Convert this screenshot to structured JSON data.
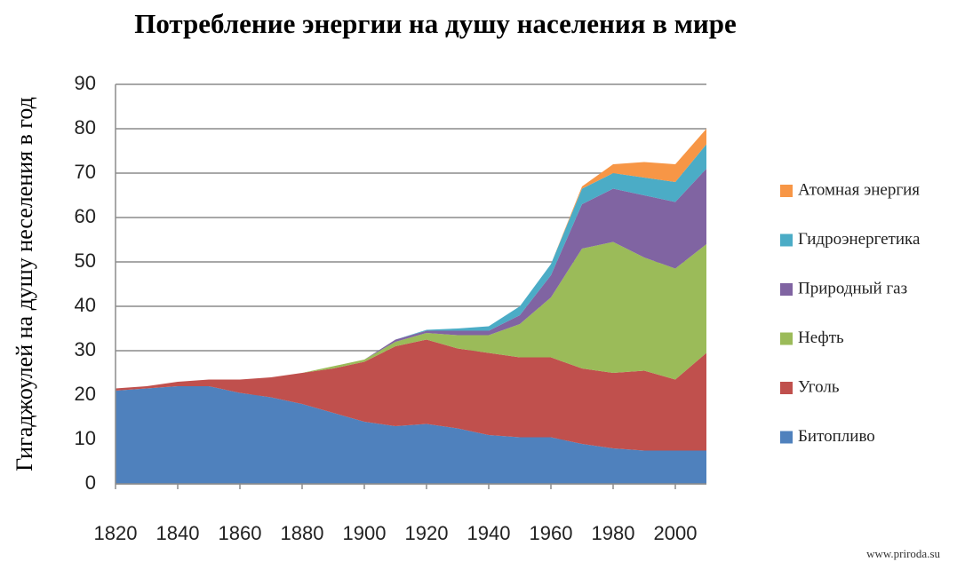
{
  "chart_data": {
    "type": "stacked_area",
    "title": "Потребление энергии на душу населения в мире",
    "y_label": "Гигаджоулей на душу неселения в год",
    "source": "www.priroda.su",
    "x": [
      1820,
      1830,
      1840,
      1850,
      1860,
      1870,
      1880,
      1890,
      1900,
      1910,
      1920,
      1930,
      1940,
      1950,
      1960,
      1970,
      1980,
      1990,
      2000,
      2010
    ],
    "xlim": [
      1820,
      2010
    ],
    "xticks": [
      1820,
      1840,
      1860,
      1880,
      1900,
      1920,
      1940,
      1960,
      1980,
      2000
    ],
    "ylim": [
      0,
      90
    ],
    "yticks": [
      0,
      10,
      20,
      30,
      40,
      50,
      60,
      70,
      80,
      90
    ],
    "grid": true,
    "legend": "right",
    "series": [
      {
        "name": "Битопливо",
        "color": "#4f81bd",
        "values": [
          21,
          21.5,
          22,
          22,
          20.5,
          19.5,
          18,
          16,
          14,
          13,
          13.5,
          12.5,
          11,
          10.5,
          10.5,
          9,
          8,
          7.5,
          7.5,
          7.5
        ]
      },
      {
        "name": "Уголь",
        "color": "#c0504d",
        "values": [
          0.5,
          0.5,
          1,
          1.5,
          3,
          4.5,
          7,
          10,
          13.5,
          18,
          19,
          18,
          18.5,
          18,
          18,
          17,
          17,
          18,
          16,
          22
        ]
      },
      {
        "name": "Нефть",
        "color": "#9bbb59",
        "values": [
          0,
          0,
          0,
          0,
          0,
          0,
          0,
          0.5,
          0.5,
          1,
          1.5,
          3,
          4,
          7.5,
          13.5,
          27,
          29.5,
          25.5,
          25,
          24.5
        ]
      },
      {
        "name": "Природный газ",
        "color": "#8064a2",
        "values": [
          0,
          0,
          0,
          0,
          0,
          0,
          0,
          0,
          0,
          0.5,
          0.5,
          1,
          1,
          2,
          5,
          10,
          12,
          14,
          15,
          17
        ]
      },
      {
        "name": "Гидроэнергетика",
        "color": "#4bacc6",
        "values": [
          0,
          0,
          0,
          0,
          0,
          0,
          0,
          0,
          0,
          0,
          0.2,
          0.5,
          1,
          2,
          2.5,
          3.5,
          3.5,
          4,
          4.5,
          5.5
        ]
      },
      {
        "name": "Атомная энергия",
        "color": "#f79646",
        "values": [
          0,
          0,
          0,
          0,
          0,
          0,
          0,
          0,
          0,
          0,
          0,
          0,
          0,
          0,
          0,
          0.5,
          2,
          3.5,
          4,
          3.5
        ]
      }
    ]
  }
}
